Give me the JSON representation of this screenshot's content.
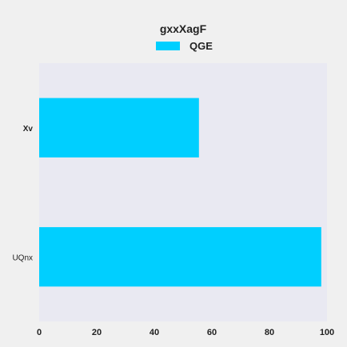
{
  "chart_data": {
    "type": "bar",
    "orientation": "horizontal",
    "categories": [
      "Xv",
      "UQnx"
    ],
    "series": [
      {
        "name": "QGE",
        "values": [
          55.5,
          98
        ]
      }
    ],
    "legend_title": "gxxXagF",
    "legend_position": "top-center",
    "xlim": [
      0,
      100
    ],
    "xticks": [
      "0",
      "20",
      "40",
      "60",
      "80",
      "100"
    ],
    "grid": false,
    "colors": {
      "bar": "#00cfff",
      "plot_bg": "#e9e9f2",
      "page_bg": "#f0f0f0"
    }
  }
}
